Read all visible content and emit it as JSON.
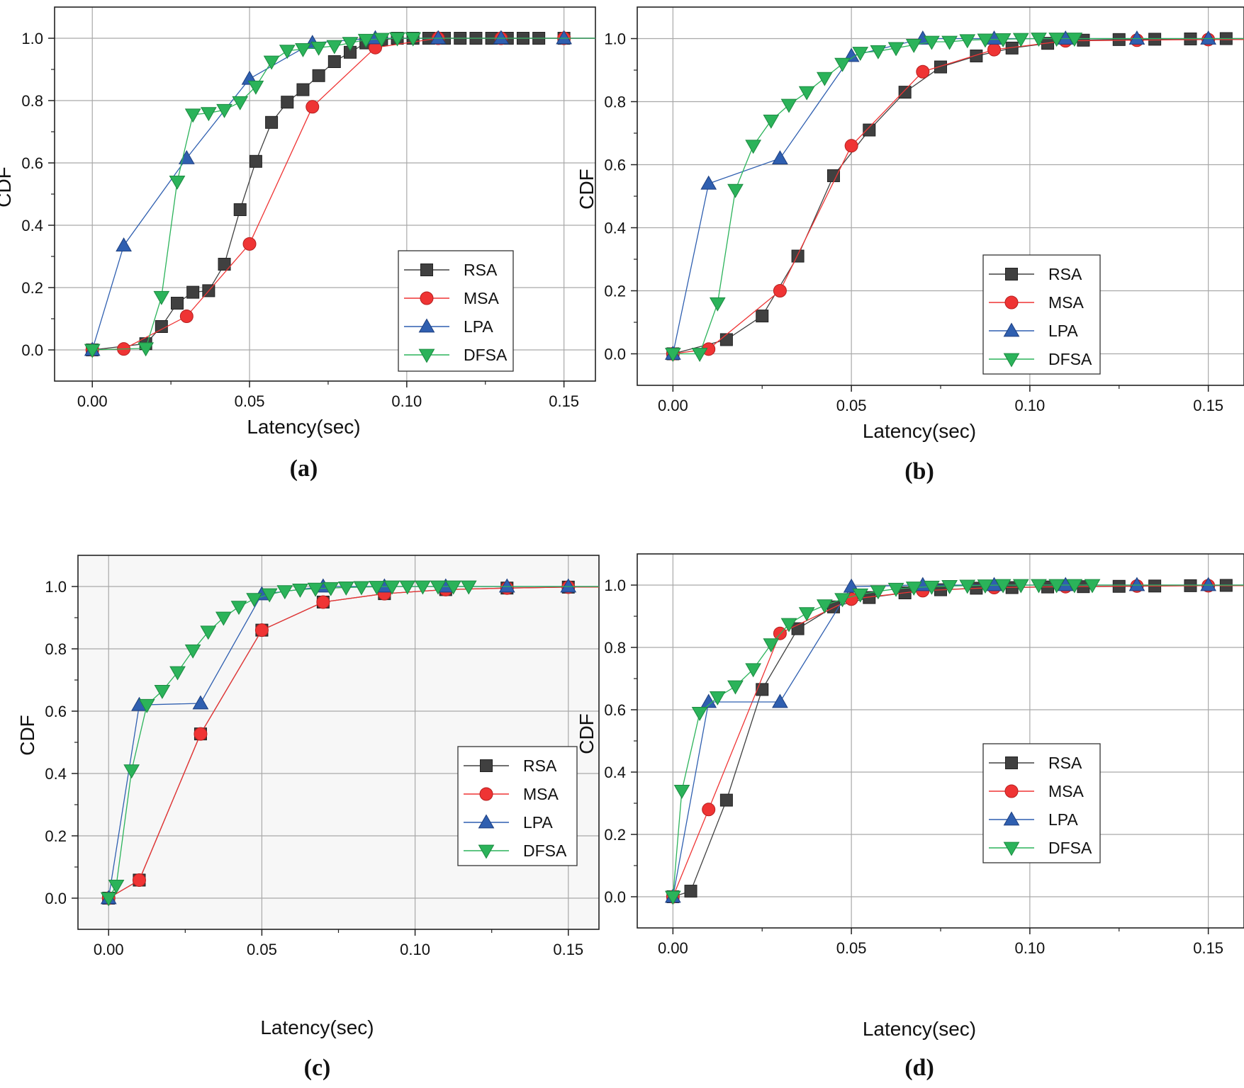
{
  "figure": {
    "colors": {
      "RSA": "#404040",
      "MSA": "#ef3434",
      "LPA": "#2f5fb0",
      "DFSA": "#2bb35a"
    },
    "marker_stroke": {
      "RSA": "#222222",
      "MSA": "#b51f1f",
      "LPA": "#1d3f80",
      "DFSA": "#1b8a40"
    },
    "plot_background": [
      "#ffffff",
      "#ffffff",
      "#f7f7f7",
      "#ffffff"
    ]
  },
  "chart_data": [
    {
      "type": "line",
      "caption": "(a)",
      "xlabel": "Latency(sec)",
      "ylabel": "CDF",
      "xlim": [
        -0.012,
        0.16
      ],
      "ylim": [
        -0.1,
        1.1
      ],
      "xticks": [
        0.0,
        0.05,
        0.1,
        0.15
      ],
      "xtick_labels": [
        "0.00",
        "0.05",
        "0.10",
        "0.15"
      ],
      "yticks": [
        0.0,
        0.2,
        0.4,
        0.6,
        0.8,
        1.0
      ],
      "ytick_labels": [
        "0.0",
        "0.2",
        "0.4",
        "0.6",
        "0.8",
        "1.0"
      ],
      "grid": true,
      "legend": {
        "position": "bottom-right",
        "entries": [
          "RSA",
          "MSA",
          "LPA",
          "DFSA"
        ]
      },
      "series": [
        {
          "name": "RSA",
          "marker": "square",
          "x": [
            0,
            0.017,
            0.022,
            0.027,
            0.032,
            0.037,
            0.042,
            0.047,
            0.052,
            0.057,
            0.062,
            0.067,
            0.072,
            0.077,
            0.082,
            0.087,
            0.092,
            0.097,
            0.102,
            0.107,
            0.112,
            0.117,
            0.122,
            0.127,
            0.132,
            0.137,
            0.142,
            0.15
          ],
          "y": [
            0,
            0.02,
            0.075,
            0.15,
            0.185,
            0.19,
            0.275,
            0.45,
            0.605,
            0.73,
            0.795,
            0.835,
            0.88,
            0.925,
            0.955,
            0.985,
            0.995,
            1.0,
            1.0,
            1.0,
            1.0,
            1.0,
            1.0,
            1.0,
            1.0,
            1.0,
            1.0,
            1.0
          ]
        },
        {
          "name": "MSA",
          "marker": "circle",
          "x": [
            0,
            0.01,
            0.03,
            0.05,
            0.07,
            0.09,
            0.11,
            0.13,
            0.15
          ],
          "y": [
            0,
            0.003,
            0.108,
            0.34,
            0.78,
            0.97,
            1.0,
            1.0,
            1.0
          ]
        },
        {
          "name": "LPA",
          "marker": "triangle-up",
          "x": [
            0,
            0.01,
            0.03,
            0.05,
            0.07,
            0.09,
            0.11,
            0.13,
            0.15
          ],
          "y": [
            0,
            0.335,
            0.615,
            0.87,
            0.985,
            1.0,
            1.0,
            1.0,
            1.0
          ]
        },
        {
          "name": "DFSA",
          "marker": "triangle-down",
          "x": [
            0,
            0.017,
            0.022,
            0.027,
            0.032,
            0.037,
            0.042,
            0.047,
            0.052,
            0.057,
            0.062,
            0.067,
            0.072,
            0.077,
            0.082,
            0.087,
            0.092,
            0.097,
            0.102
          ],
          "y": [
            0,
            0.005,
            0.17,
            0.54,
            0.755,
            0.76,
            0.77,
            0.795,
            0.845,
            0.925,
            0.96,
            0.965,
            0.97,
            0.975,
            0.985,
            0.995,
            0.998,
            1.0,
            1.0
          ]
        }
      ]
    },
    {
      "type": "line",
      "caption": "(b)",
      "xlabel": "Latency(sec)",
      "ylabel": "CDF",
      "xlim": [
        -0.01,
        0.16
      ],
      "ylim": [
        -0.1,
        1.1
      ],
      "xticks": [
        0.0,
        0.05,
        0.1,
        0.15
      ],
      "xtick_labels": [
        "0.00",
        "0.05",
        "0.10",
        "0.15"
      ],
      "yticks": [
        0.0,
        0.2,
        0.4,
        0.6,
        0.8,
        1.0
      ],
      "ytick_labels": [
        "0.0",
        "0.2",
        "0.4",
        "0.6",
        "0.8",
        "1.0"
      ],
      "grid": true,
      "legend": {
        "position": "bottom-right",
        "entries": [
          "RSA",
          "MSA",
          "LPA",
          "DFSA"
        ]
      },
      "series": [
        {
          "name": "RSA",
          "marker": "square",
          "x": [
            0,
            0.015,
            0.025,
            0.035,
            0.045,
            0.055,
            0.065,
            0.075,
            0.085,
            0.095,
            0.105,
            0.115,
            0.125,
            0.135,
            0.145,
            0.155
          ],
          "y": [
            0,
            0.045,
            0.12,
            0.31,
            0.565,
            0.71,
            0.83,
            0.91,
            0.945,
            0.97,
            0.985,
            0.995,
            0.997,
            0.998,
            0.999,
            1.0
          ]
        },
        {
          "name": "MSA",
          "marker": "circle",
          "x": [
            0,
            0.01,
            0.03,
            0.05,
            0.07,
            0.09,
            0.11,
            0.13,
            0.15
          ],
          "y": [
            0,
            0.015,
            0.2,
            0.66,
            0.895,
            0.965,
            0.993,
            0.995,
            0.997
          ]
        },
        {
          "name": "LPA",
          "marker": "triangle-up",
          "x": [
            0,
            0.01,
            0.03,
            0.05,
            0.07,
            0.09,
            0.11,
            0.13,
            0.15
          ],
          "y": [
            0,
            0.54,
            0.62,
            0.945,
            1.0,
            1.0,
            1.0,
            1.0,
            1.0
          ]
        },
        {
          "name": "DFSA",
          "marker": "triangle-down",
          "x": [
            0,
            0.0075,
            0.0125,
            0.0175,
            0.0225,
            0.0275,
            0.0325,
            0.0375,
            0.0425,
            0.0475,
            0.0525,
            0.0575,
            0.0625,
            0.0675,
            0.0725,
            0.0775,
            0.0825,
            0.0875,
            0.0925,
            0.0975,
            0.1025,
            0.1075,
            0.1125
          ],
          "y": [
            0,
            0.0,
            0.16,
            0.52,
            0.66,
            0.74,
            0.79,
            0.83,
            0.875,
            0.92,
            0.955,
            0.96,
            0.97,
            0.98,
            0.99,
            0.99,
            0.995,
            0.997,
            0.998,
            0.999,
            1.0,
            1.0,
            1.0
          ]
        }
      ]
    },
    {
      "type": "line",
      "caption": "(c)",
      "xlabel": "Latency(sec)",
      "ylabel": "CDF",
      "xlim": [
        -0.01,
        0.16
      ],
      "ylim": [
        -0.1,
        1.1
      ],
      "xticks": [
        0.0,
        0.05,
        0.1,
        0.15
      ],
      "xtick_labels": [
        "0.00",
        "0.05",
        "0.10",
        "0.15"
      ],
      "yticks": [
        0.0,
        0.2,
        0.4,
        0.6,
        0.8,
        1.0
      ],
      "ytick_labels": [
        "0.0",
        "0.2",
        "0.4",
        "0.6",
        "0.8",
        "1.0"
      ],
      "grid": true,
      "legend": {
        "position": "bottom-right",
        "entries": [
          "RSA",
          "MSA",
          "LPA",
          "DFSA"
        ]
      },
      "series": [
        {
          "name": "RSA",
          "marker": "square",
          "x": [
            0,
            0.01,
            0.03,
            0.05,
            0.07,
            0.09,
            0.11,
            0.13,
            0.15
          ],
          "y": [
            0,
            0.058,
            0.527,
            0.86,
            0.95,
            0.977,
            0.99,
            0.995,
            0.998
          ]
        },
        {
          "name": "MSA",
          "marker": "circle",
          "x": [
            0,
            0.01,
            0.03,
            0.05,
            0.07,
            0.09,
            0.11,
            0.13,
            0.15
          ],
          "y": [
            0,
            0.058,
            0.527,
            0.86,
            0.95,
            0.977,
            0.99,
            0.995,
            0.998
          ]
        },
        {
          "name": "LPA",
          "marker": "triangle-up",
          "x": [
            0,
            0.01,
            0.03,
            0.05,
            0.07,
            0.09,
            0.11,
            0.13,
            0.15
          ],
          "y": [
            0,
            0.62,
            0.625,
            0.975,
            1.0,
            1.0,
            1.0,
            1.0,
            1.0
          ]
        },
        {
          "name": "DFSA",
          "marker": "triangle-down",
          "x": [
            0,
            0.0025,
            0.0075,
            0.0125,
            0.0175,
            0.0225,
            0.0275,
            0.0325,
            0.0375,
            0.0425,
            0.0475,
            0.0525,
            0.0575,
            0.0625,
            0.0675,
            0.0725,
            0.0775,
            0.0825,
            0.0875,
            0.0925,
            0.0975,
            0.1025,
            0.1075,
            0.1125,
            0.1175
          ],
          "y": [
            0,
            0.04,
            0.41,
            0.62,
            0.665,
            0.725,
            0.795,
            0.855,
            0.9,
            0.935,
            0.96,
            0.975,
            0.985,
            0.99,
            0.993,
            0.995,
            0.997,
            0.998,
            0.999,
            1.0,
            1.0,
            1.0,
            1.0,
            1.0,
            1.0
          ]
        }
      ]
    },
    {
      "type": "line",
      "caption": "(d)",
      "xlabel": "Latency(sec)",
      "ylabel": "CDF",
      "xlim": [
        -0.01,
        0.16
      ],
      "ylim": [
        -0.1,
        1.1
      ],
      "xticks": [
        0.0,
        0.05,
        0.1,
        0.15
      ],
      "xtick_labels": [
        "0.00",
        "0.05",
        "0.10",
        "0.15"
      ],
      "yticks": [
        0.0,
        0.2,
        0.4,
        0.6,
        0.8,
        1.0
      ],
      "ytick_labels": [
        "0.0",
        "0.2",
        "0.4",
        "0.6",
        "0.8",
        "1.0"
      ],
      "grid": true,
      "legend": {
        "position": "bottom-right",
        "entries": [
          "RSA",
          "MSA",
          "LPA",
          "DFSA"
        ]
      },
      "series": [
        {
          "name": "RSA",
          "marker": "square",
          "x": [
            0,
            0.005,
            0.015,
            0.025,
            0.035,
            0.045,
            0.055,
            0.065,
            0.075,
            0.085,
            0.095,
            0.105,
            0.115,
            0.125,
            0.135,
            0.145,
            0.155
          ],
          "y": [
            0,
            0.018,
            0.31,
            0.665,
            0.86,
            0.93,
            0.96,
            0.975,
            0.985,
            0.99,
            0.992,
            0.994,
            0.995,
            0.996,
            0.997,
            0.998,
            0.999
          ]
        },
        {
          "name": "MSA",
          "marker": "circle",
          "x": [
            0,
            0.01,
            0.03,
            0.05,
            0.07,
            0.09,
            0.11,
            0.13,
            0.15
          ],
          "y": [
            0,
            0.28,
            0.845,
            0.955,
            0.982,
            0.992,
            0.995,
            0.997,
            0.998
          ]
        },
        {
          "name": "LPA",
          "marker": "triangle-up",
          "x": [
            0,
            0.01,
            0.03,
            0.05,
            0.07,
            0.09,
            0.11,
            0.13,
            0.15
          ],
          "y": [
            0,
            0.625,
            0.625,
            0.995,
            1.0,
            1.0,
            1.0,
            1.0,
            1.0
          ]
        },
        {
          "name": "DFSA",
          "marker": "triangle-down",
          "x": [
            0,
            0.0025,
            0.0075,
            0.0125,
            0.0175,
            0.0225,
            0.0275,
            0.0325,
            0.0375,
            0.0425,
            0.0475,
            0.0525,
            0.0575,
            0.0625,
            0.0675,
            0.0725,
            0.0775,
            0.0825,
            0.0875,
            0.0925,
            0.0975,
            0.1025,
            0.1075,
            0.1125,
            0.1175
          ],
          "y": [
            0,
            0.34,
            0.59,
            0.64,
            0.675,
            0.73,
            0.81,
            0.875,
            0.91,
            0.935,
            0.955,
            0.97,
            0.98,
            0.988,
            0.992,
            0.995,
            0.997,
            0.998,
            0.999,
            1.0,
            1.0,
            1.0,
            1.0,
            1.0,
            1.0
          ]
        }
      ]
    }
  ]
}
